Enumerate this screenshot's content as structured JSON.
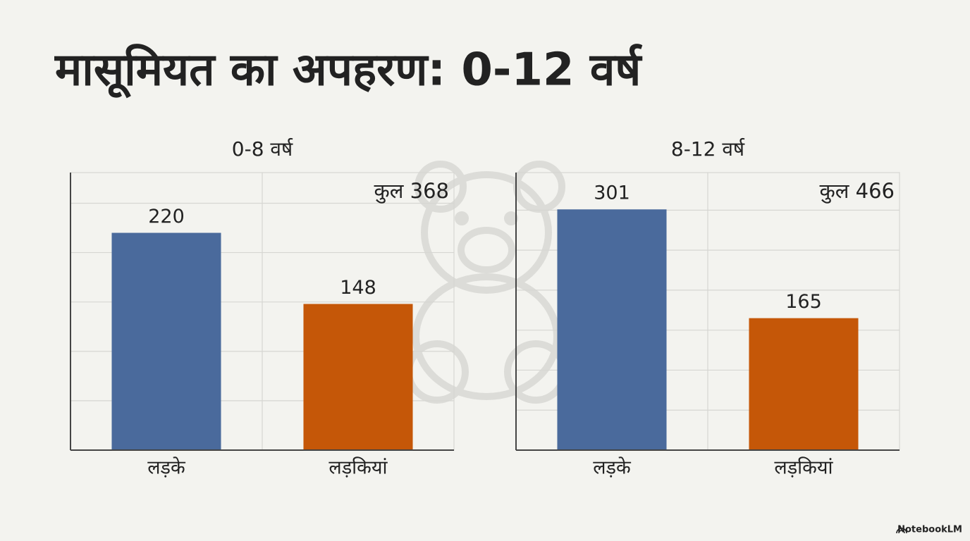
{
  "title": "मासूमियत का अपहरण: 0-12 वर्ष",
  "chart_data": [
    {
      "type": "bar",
      "title": "0-8 वर्ष",
      "annotation": "कुल 368",
      "categories": [
        "लड़के",
        "लड़कियां"
      ],
      "values": [
        220,
        148
      ],
      "colors": [
        "#4a6a9c",
        "#c55708"
      ],
      "ylim": [
        0,
        281
      ],
      "yticks": [
        0,
        50,
        100,
        150,
        200,
        250
      ],
      "grid": true
    },
    {
      "type": "bar",
      "title": "8-12 वर्ष",
      "annotation": "कुल 466",
      "categories": [
        "लड़के",
        "लड़कियां"
      ],
      "values": [
        301,
        165
      ],
      "colors": [
        "#4a6a9c",
        "#c55708"
      ],
      "ylim": [
        0,
        347
      ],
      "yticks": [
        0,
        50,
        100,
        150,
        200,
        250,
        300
      ],
      "grid": true
    }
  ],
  "footer": "NotebookLM"
}
